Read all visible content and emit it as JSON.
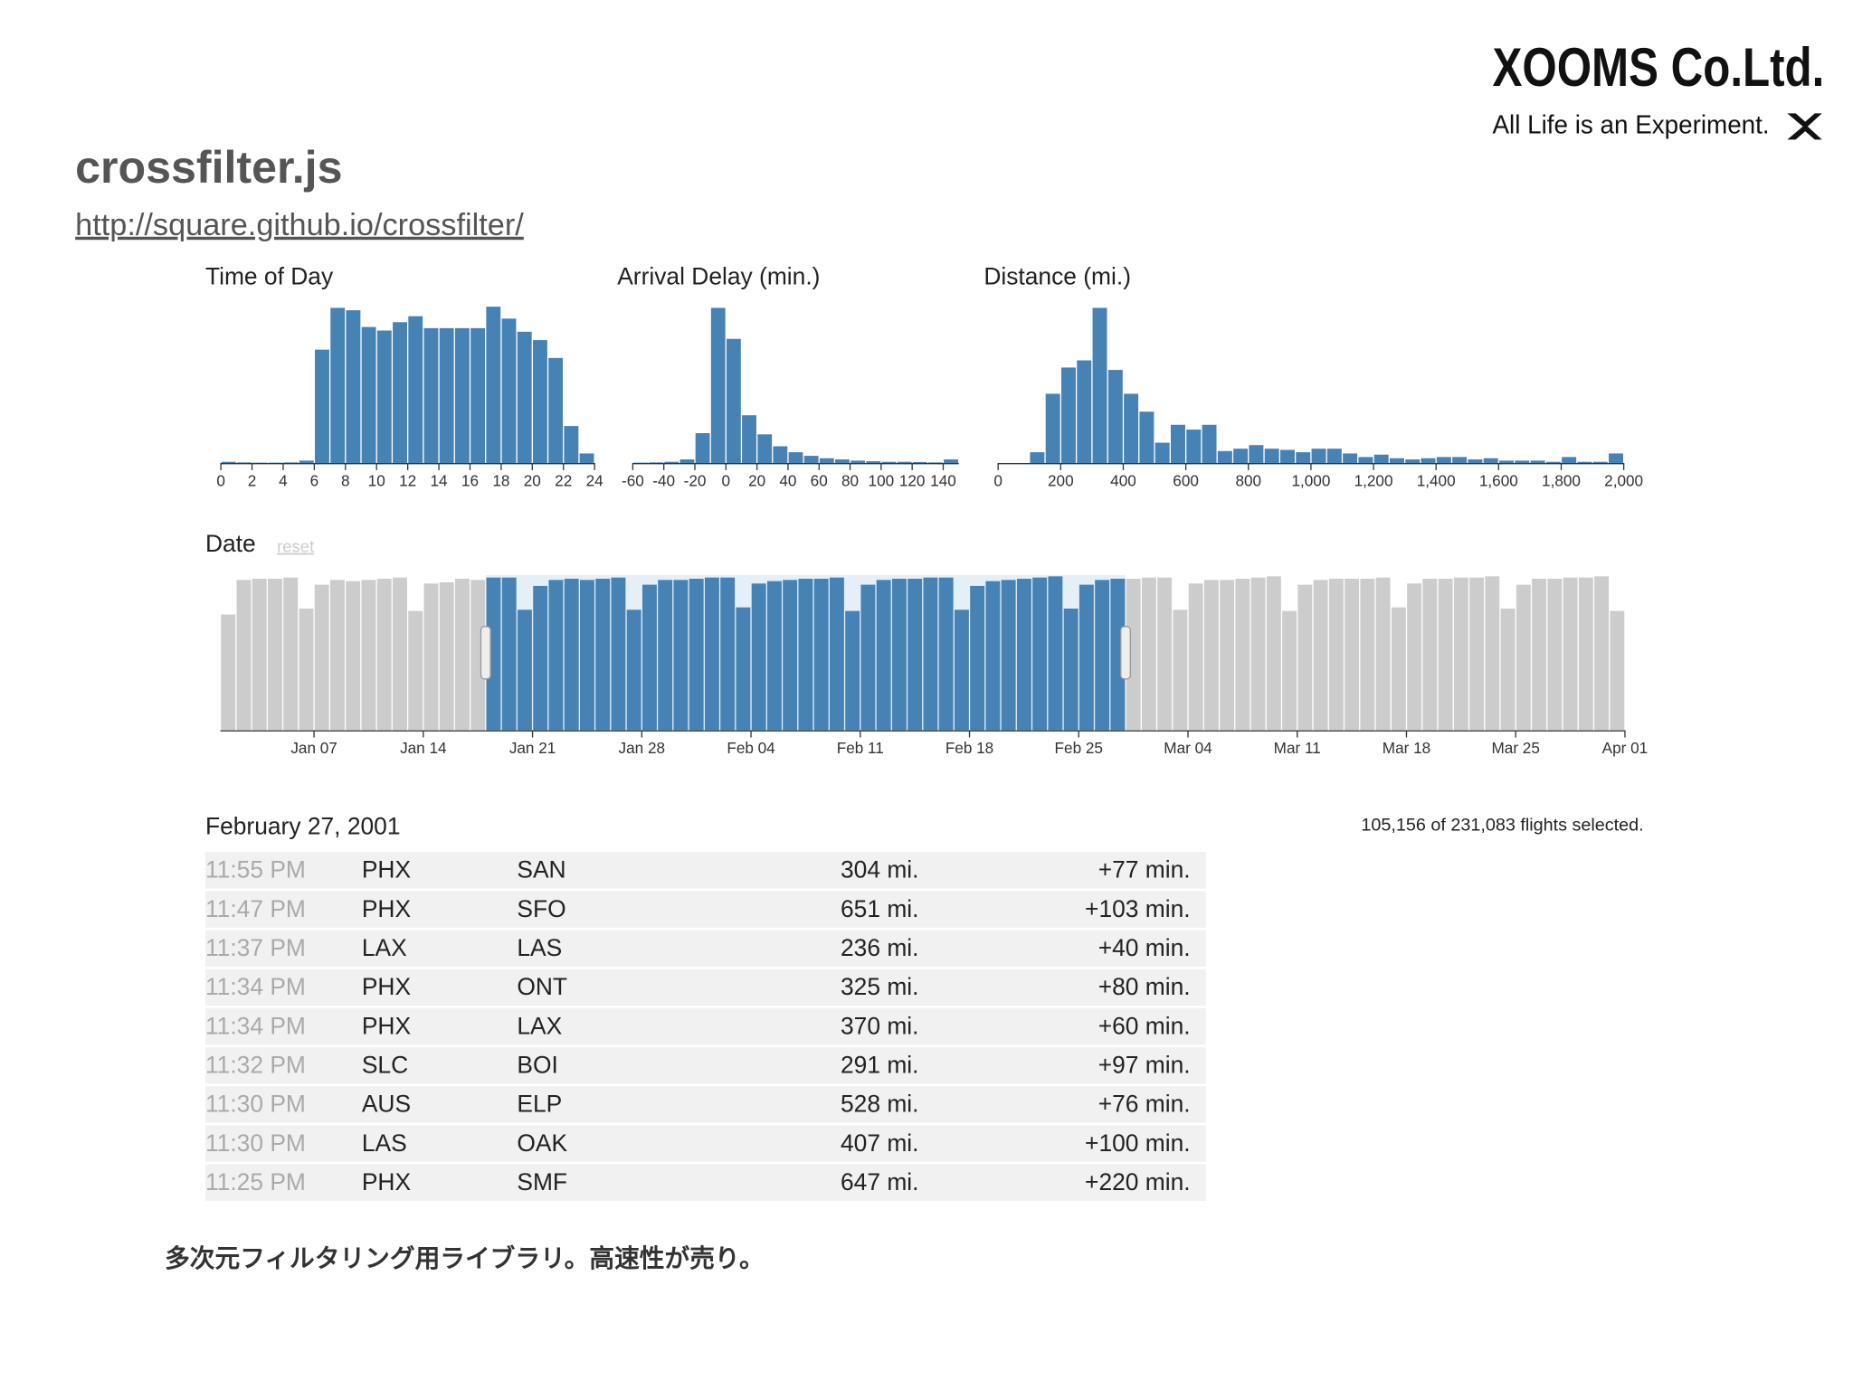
{
  "header": {
    "title": "crossfilter.js",
    "url": "http://square.github.io/crossfilter/"
  },
  "logo": {
    "name": "XOOMS Co.Ltd.",
    "tagline": "All Life is an Experiment."
  },
  "chart_data": [
    {
      "type": "histogram",
      "title": "Time of Day",
      "color": "#4682b4",
      "bins": [
        0,
        1,
        2,
        3,
        4,
        5,
        6,
        7,
        8,
        9,
        10,
        11,
        12,
        13,
        14,
        15,
        16,
        17,
        18,
        19,
        20,
        21,
        22,
        23,
        24
      ],
      "values": [
        1,
        0.5,
        0.3,
        0.3,
        0.5,
        2,
        95,
        130,
        128,
        114,
        111,
        118,
        123,
        113,
        113,
        113,
        113,
        131,
        121,
        110,
        103,
        88,
        31,
        8
      ],
      "xlim": [
        0,
        24
      ],
      "xticks": [
        0,
        2,
        4,
        6,
        8,
        10,
        12,
        14,
        16,
        18,
        20,
        22,
        24
      ],
      "ylim": [
        0,
        130
      ]
    },
    {
      "type": "histogram",
      "title": "Arrival Delay (min.)",
      "color": "#4682b4",
      "bins": [
        -60,
        -50,
        -40,
        -30,
        -20,
        -10,
        0,
        10,
        20,
        30,
        40,
        50,
        60,
        70,
        80,
        90,
        100,
        110,
        120,
        130,
        140,
        150
      ],
      "values": [
        0.3,
        0.5,
        1,
        3,
        25,
        130,
        104,
        40,
        24,
        14,
        9,
        6,
        4,
        3,
        2,
        1.5,
        1,
        1,
        0.8,
        0.5,
        3
      ],
      "xlim": [
        -60,
        150
      ],
      "xticks": [
        -60,
        -40,
        -20,
        0,
        20,
        40,
        60,
        80,
        100,
        120,
        140
      ],
      "ylim": [
        0,
        130
      ]
    },
    {
      "type": "histogram",
      "title": "Distance (mi.)",
      "color": "#4682b4",
      "bins": [
        0,
        50,
        100,
        150,
        200,
        250,
        300,
        350,
        400,
        450,
        500,
        550,
        600,
        650,
        700,
        750,
        800,
        850,
        900,
        950,
        1000,
        1050,
        1100,
        1150,
        1200,
        1250,
        1300,
        1350,
        1400,
        1450,
        1500,
        1550,
        1600,
        1650,
        1700,
        1750,
        1800,
        1850,
        1900,
        1950,
        2000
      ],
      "values": [
        0,
        0,
        9,
        58,
        80,
        86,
        130,
        78,
        58,
        43,
        17,
        32,
        28,
        32,
        10,
        12,
        15,
        12,
        11,
        9,
        12,
        12,
        8,
        5,
        7,
        4,
        3,
        4,
        5,
        5,
        3,
        4,
        2,
        2,
        2,
        1,
        5,
        1,
        1,
        8
      ],
      "xlim": [
        0,
        2000
      ],
      "xticks": [
        0,
        200,
        400,
        600,
        800,
        {
          "value": 1000,
          "label": "1,000"
        },
        {
          "value": 1200,
          "label": "1,200"
        },
        {
          "value": 1400,
          "label": "1,400"
        },
        {
          "value": 1600,
          "label": "1,600"
        },
        {
          "value": 1800,
          "label": "1,800"
        },
        {
          "value": 2000,
          "label": "2,000"
        }
      ],
      "ylim": [
        0,
        130
      ]
    },
    {
      "type": "histogram",
      "title": "Date",
      "reset": "reset",
      "color": "#4682b4",
      "unselected_color": "#cccccc",
      "bins": [
        1,
        2,
        3,
        4,
        5,
        6,
        7,
        8,
        9,
        10,
        11,
        12,
        13,
        14,
        15,
        16,
        17,
        18,
        19,
        20,
        21,
        22,
        23,
        24,
        25,
        26,
        27,
        28,
        29,
        30,
        31,
        32,
        33,
        34,
        35,
        36,
        37,
        38,
        39,
        40,
        41,
        42,
        43,
        44,
        45,
        46,
        47,
        48,
        49,
        50,
        51,
        52,
        53,
        54,
        55,
        56,
        57,
        58,
        59,
        60,
        61,
        62,
        63,
        64,
        65,
        66,
        67,
        68,
        69,
        70,
        71,
        72,
        73,
        74,
        75,
        76,
        77,
        78,
        79,
        80,
        81,
        82,
        83,
        84,
        85,
        86,
        87,
        88,
        89,
        90,
        91
      ],
      "values": [
        97,
        126,
        127,
        127,
        128,
        102,
        122,
        126,
        125,
        126,
        127,
        128,
        100,
        123,
        124,
        127,
        126,
        128,
        128,
        101,
        121,
        126,
        127,
        126,
        127,
        128,
        101,
        122,
        126,
        126,
        127,
        128,
        128,
        103,
        123,
        125,
        126,
        127,
        127,
        128,
        100,
        122,
        126,
        127,
        127,
        128,
        128,
        101,
        121,
        125,
        126,
        127,
        128,
        129,
        102,
        122,
        126,
        127,
        127,
        128,
        128,
        101,
        123,
        126,
        126,
        127,
        128,
        129,
        100,
        122,
        126,
        127,
        127,
        127,
        128,
        103,
        123,
        127,
        127,
        128,
        128,
        129,
        102,
        122,
        127,
        127,
        128,
        128,
        129,
        100
      ],
      "selection": [
        18,
        59
      ],
      "xlim": [
        1,
        91
      ],
      "xticks": [
        {
          "value": 7,
          "label": "Jan 07"
        },
        {
          "value": 14,
          "label": "Jan 14"
        },
        {
          "value": 21,
          "label": "Jan 21"
        },
        {
          "value": 28,
          "label": "Jan 28"
        },
        {
          "value": 35,
          "label": "Feb 04"
        },
        {
          "value": 42,
          "label": "Feb 11"
        },
        {
          "value": 49,
          "label": "Feb 18"
        },
        {
          "value": 56,
          "label": "Feb 25"
        },
        {
          "value": 63,
          "label": "Mar 04"
        },
        {
          "value": 70,
          "label": "Mar 11"
        },
        {
          "value": 77,
          "label": "Mar 18"
        },
        {
          "value": 84,
          "label": "Mar 25"
        },
        {
          "value": 91,
          "label": "Apr 01"
        }
      ],
      "ylim": [
        0,
        130
      ]
    }
  ],
  "table": {
    "date": "February 27, 2001",
    "summary": "105,156 of 231,083 flights selected.",
    "rows": [
      [
        "11:55 PM",
        "PHX",
        "SAN",
        "304 mi.",
        "+77 min."
      ],
      [
        "11:47 PM",
        "PHX",
        "SFO",
        "651 mi.",
        "+103 min."
      ],
      [
        "11:37 PM",
        "LAX",
        "LAS",
        "236 mi.",
        "+40 min."
      ],
      [
        "11:34 PM",
        "PHX",
        "ONT",
        "325 mi.",
        "+80 min."
      ],
      [
        "11:34 PM",
        "PHX",
        "LAX",
        "370 mi.",
        "+60 min."
      ],
      [
        "11:32 PM",
        "SLC",
        "BOI",
        "291 mi.",
        "+97 min."
      ],
      [
        "11:30 PM",
        "AUS",
        "ELP",
        "528 mi.",
        "+76 min."
      ],
      [
        "11:30 PM",
        "LAS",
        "OAK",
        "407 mi.",
        "+100 min."
      ],
      [
        "11:25 PM",
        "PHX",
        "SMF",
        "647 mi.",
        "+220 min."
      ]
    ]
  },
  "caption": "多次元フィルタリング用ライブラリ。高速性が売り。"
}
